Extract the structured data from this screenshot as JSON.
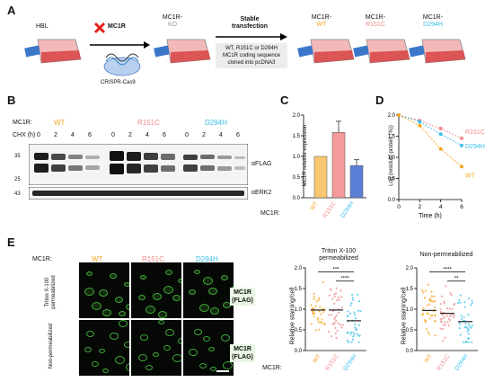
{
  "panels": {
    "A": "A",
    "B": "B",
    "C": "C",
    "D": "D",
    "E": "E"
  },
  "colors": {
    "wt": "#f5a623",
    "r151c": "#f08a8a",
    "d294h": "#3cc0e8",
    "wt_bar": "#f9c76f",
    "r151c_bar": "#f49a9a",
    "d294h_bar": "#5c7fd6",
    "green": "#43a843"
  },
  "panelA": {
    "hbl": "HBL",
    "mc1r": "MC1R",
    "crispr": "CRISPR-Cas9",
    "ko_prefix": "MC1R-",
    "ko": "KO",
    "stable_line1": "Stable",
    "stable_line2": "transfection",
    "box_line1": "WT, R151C or D294H",
    "box_line2": "MC1R coding sequence",
    "box_line3": "cloned into pcDNA3",
    "lines": [
      {
        "prefix": "MC1R-",
        "name": "WT"
      },
      {
        "prefix": "MC1R-",
        "name": "R151C"
      },
      {
        "prefix": "MC1R-",
        "name": "D294H"
      }
    ]
  },
  "panelB": {
    "mc1r_label": "MC1R:",
    "chx_label": "CHX (h)",
    "groups": [
      {
        "name": "WT",
        "times": [
          "0",
          "2",
          "4",
          "6"
        ]
      },
      {
        "name": "R151C",
        "times": [
          "0",
          "2",
          "4",
          "6"
        ]
      },
      {
        "name": "D294H",
        "times": [
          "0",
          "2",
          "4",
          "6"
        ]
      }
    ],
    "mw": [
      "35",
      "25",
      "43"
    ],
    "flag": "αFLAG",
    "erk": "αERK2"
  },
  "panelC": {
    "ylabel": "MC1R relative expression",
    "yticks": [
      "0.0",
      "0.5",
      "1.0",
      "1.5",
      "2.0"
    ],
    "mc1r_label": "MC1R:",
    "chart_data": {
      "type": "bar",
      "categories": [
        "WT",
        "R151C",
        "D294H"
      ],
      "values": [
        1.0,
        1.58,
        0.78
      ],
      "errors": [
        0.0,
        0.27,
        0.14
      ],
      "ylim": [
        0,
        2.0
      ]
    }
  },
  "panelD": {
    "ylabel": "Log (residual protein (%))",
    "xlabel": "Time (h)",
    "yticks": [
      "0.0",
      "0.5",
      "1.0",
      "1.5",
      "2.0"
    ],
    "xticks": [
      "0",
      "2",
      "4",
      "6"
    ],
    "chart_data": {
      "type": "line",
      "x": [
        0,
        2,
        4,
        6
      ],
      "xlim": [
        0,
        6
      ],
      "ylim": [
        0,
        2.0
      ],
      "series": [
        {
          "name": "R151C",
          "values": [
            2.0,
            1.87,
            1.68,
            1.45
          ]
        },
        {
          "name": "D294H",
          "values": [
            2.0,
            1.84,
            1.55,
            1.28
          ]
        },
        {
          "name": "WT",
          "values": [
            2.0,
            1.75,
            1.2,
            0.78
          ]
        }
      ]
    }
  },
  "panelE": {
    "mc1r_label": "MC1R:",
    "cols": [
      "WT",
      "R151C",
      "D294H"
    ],
    "rows": [
      "Triton X-100\npermeabilized",
      "Non-permeabilized"
    ],
    "tag1": "MC1R",
    "tag2": "(FLAG)",
    "plot1_title_line1": "Triton X-100",
    "plot1_title_line2": "permeabilized",
    "plot2_title": "Non-permeabilized",
    "ylabel": "Relative staining/cell",
    "yticks": [
      "0.0",
      "0.5",
      "1.0",
      "1.5",
      "2.0"
    ],
    "sig1": [
      "***",
      "****"
    ],
    "sig2": [
      "****",
      "**"
    ],
    "chart_data": [
      {
        "type": "scatter",
        "categories": [
          "WT",
          "R151C",
          "D294H"
        ],
        "medians": [
          0.98,
          0.98,
          0.72
        ],
        "ylim": [
          0,
          2.0
        ]
      },
      {
        "type": "scatter",
        "categories": [
          "WT",
          "R151C",
          "D294H"
        ],
        "medians": [
          0.97,
          0.9,
          0.7
        ],
        "ylim": [
          0,
          2.0
        ]
      }
    ]
  }
}
